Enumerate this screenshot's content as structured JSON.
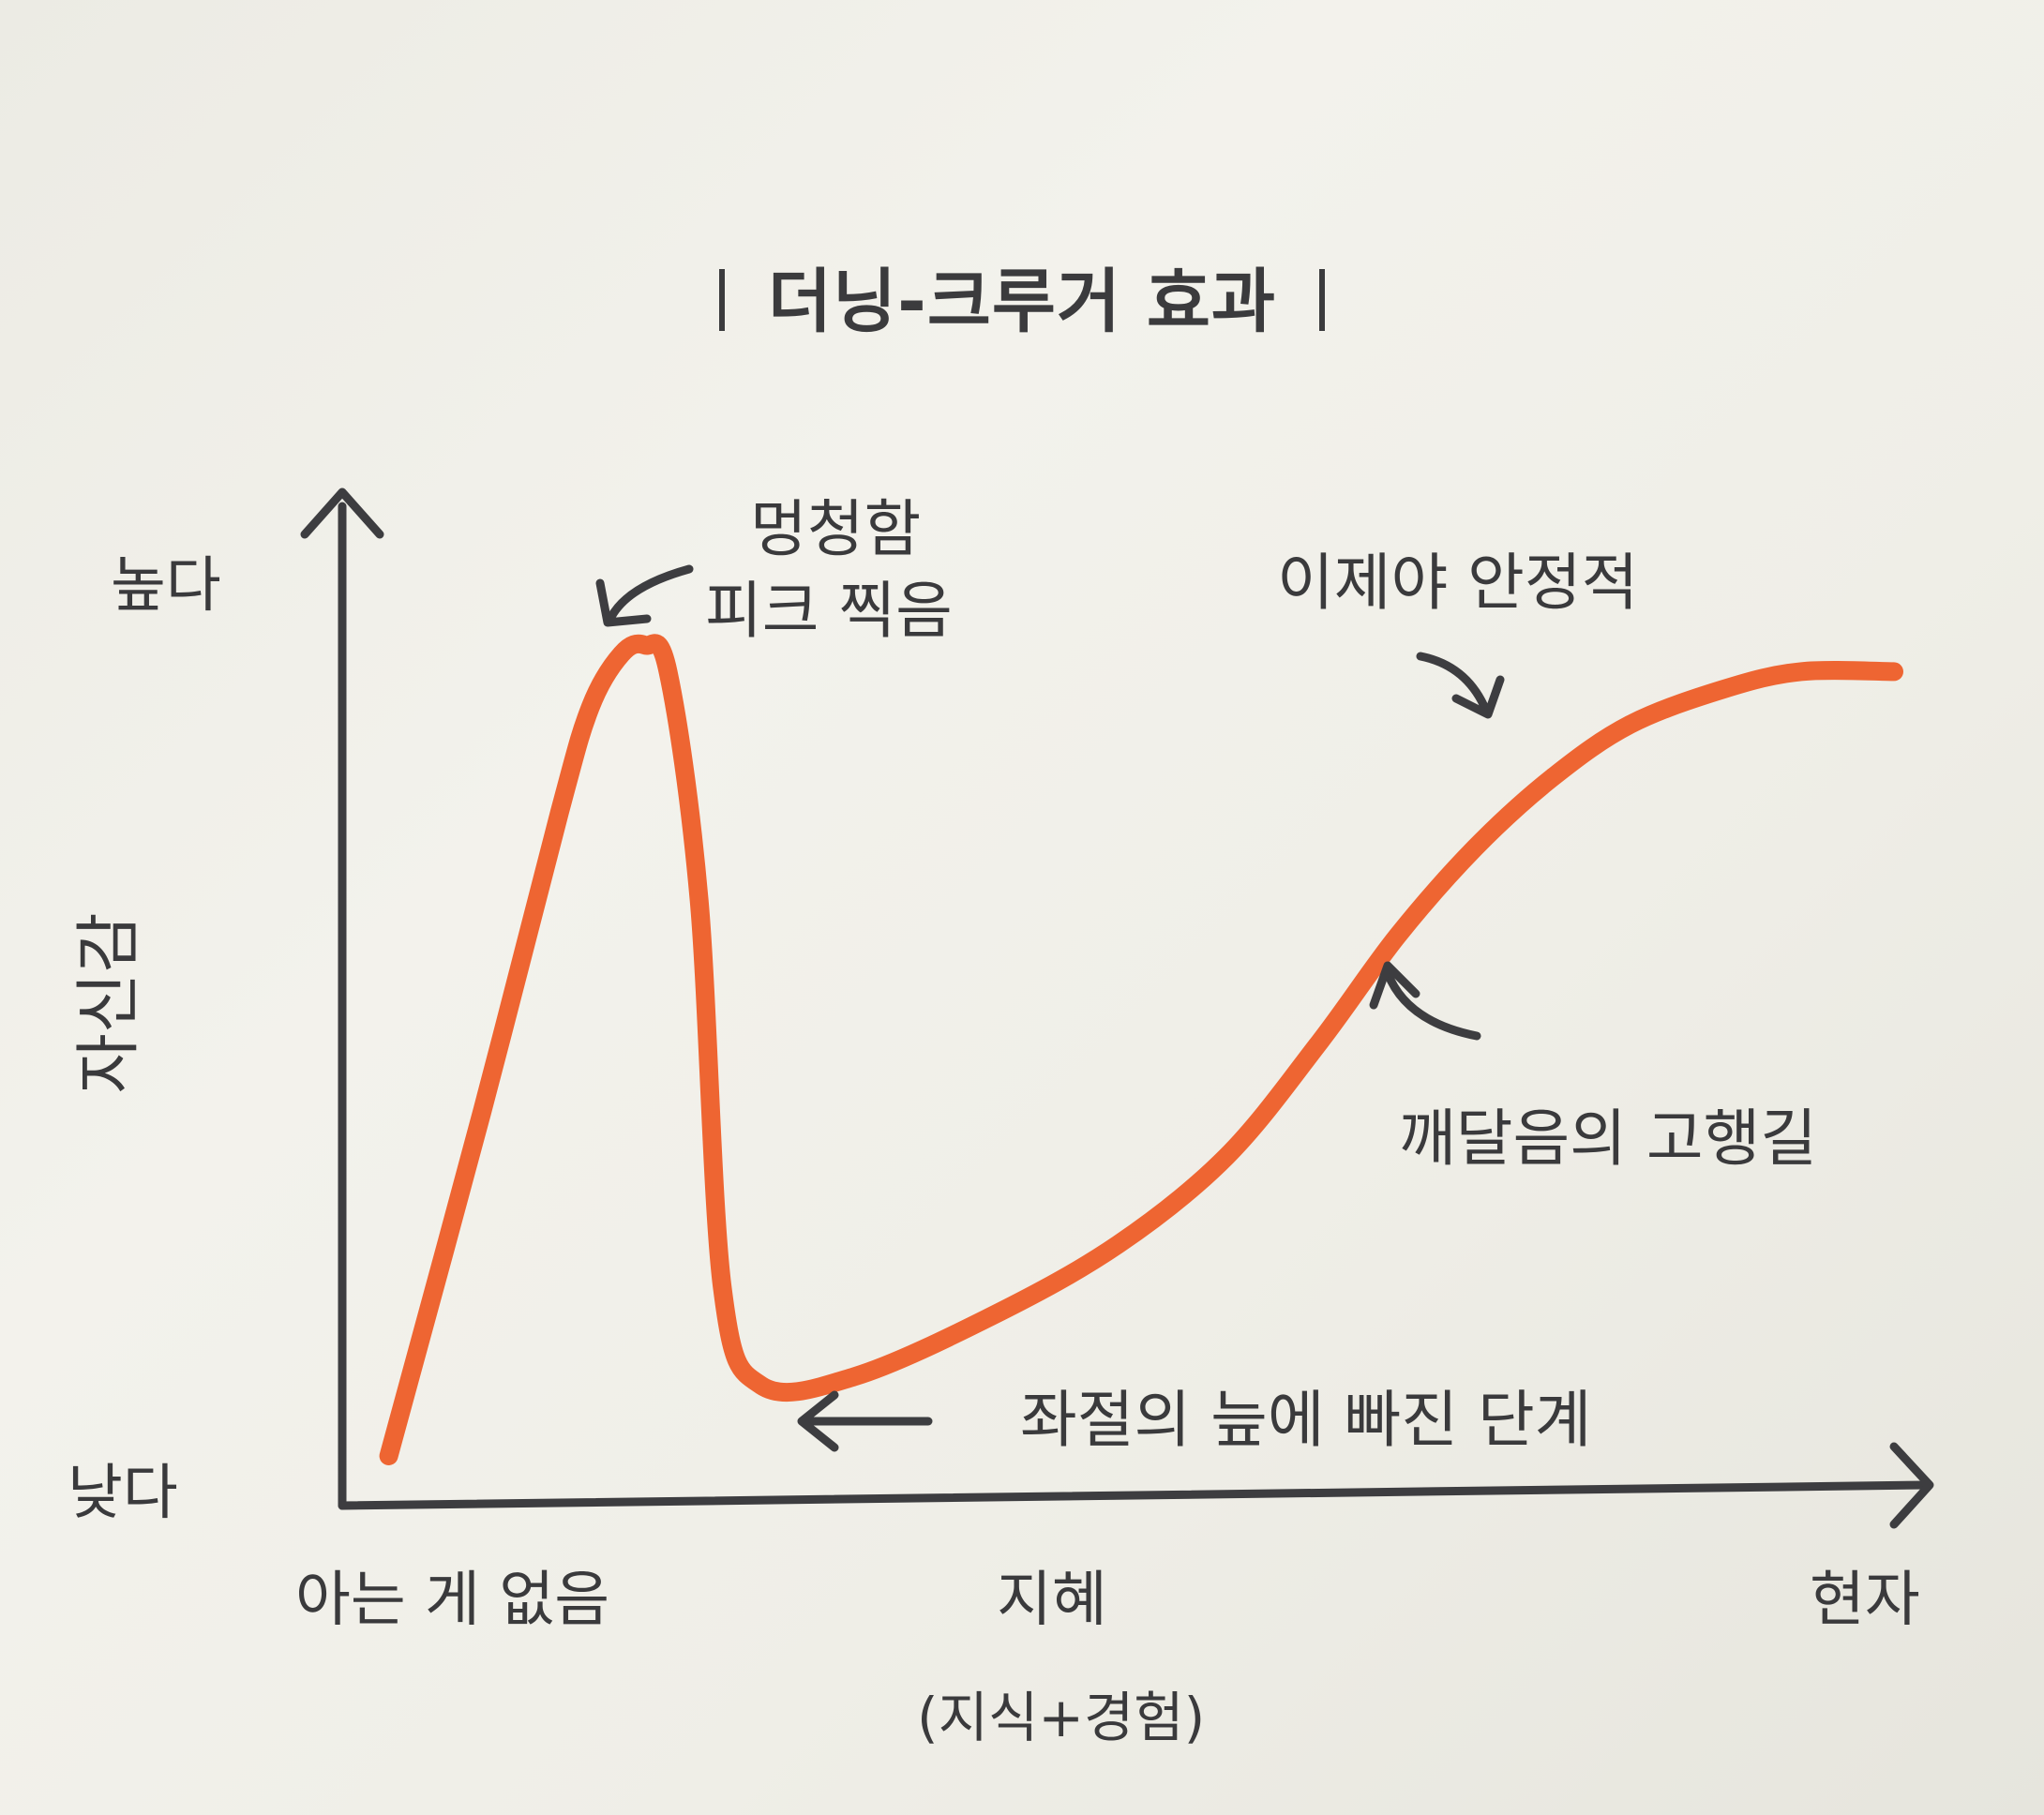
{
  "chart_data": {
    "type": "line",
    "title": "더닝-크루거 효과",
    "xlabel": "지혜",
    "xlabel_sub": "(지식+경험)",
    "ylabel": "자신감",
    "x_ticks": [
      "아는 게 없음",
      "현자"
    ],
    "y_ticks": [
      "높다",
      "낮다"
    ],
    "xlim": [
      0,
      100
    ],
    "ylim": [
      0,
      100
    ],
    "grid": false,
    "series": [
      {
        "color": "#ee6532",
        "x": [
          3,
          9,
          14,
          16,
          18,
          19.5,
          21,
          23,
          24.5,
          27,
          33,
          42,
          50,
          57,
          63,
          68,
          73,
          78,
          83,
          89,
          94,
          100
        ],
        "y": [
          5,
          44,
          78,
          90,
          96,
          97,
          94,
          68,
          24,
          13,
          14,
          21,
          29,
          39,
          52,
          64,
          74,
          82,
          88,
          92,
          94,
          94
        ]
      }
    ],
    "annotations": [
      {
        "text": "멍청함\n피크 찍음",
        "points_to": "peak"
      },
      {
        "text": "좌절의 늪에 빠진 단계",
        "points_to": "valley"
      },
      {
        "text": "깨달음의 고행길",
        "points_to": "slope"
      },
      {
        "text": "이제야 안정적",
        "points_to": "plateau"
      }
    ]
  },
  "colors": {
    "curve": "#ee6532",
    "axis": "#3d3d40",
    "text": "#3a3a3c"
  },
  "labels": {
    "title": "더닝-크루거 효과",
    "y_high": "높다",
    "y_low": "낮다",
    "y_axis": "자신감",
    "x_start": "아는 게 없음",
    "x_mid": "지혜",
    "x_mid_sub": "(지식+경험)",
    "x_end": "현자",
    "peak_line1": "멍청함",
    "peak_line2": "피크 찍음",
    "valley": "좌절의 늪에 빠진 단계",
    "slope": "깨달음의 고행길",
    "plateau": "이제야 안정적"
  }
}
